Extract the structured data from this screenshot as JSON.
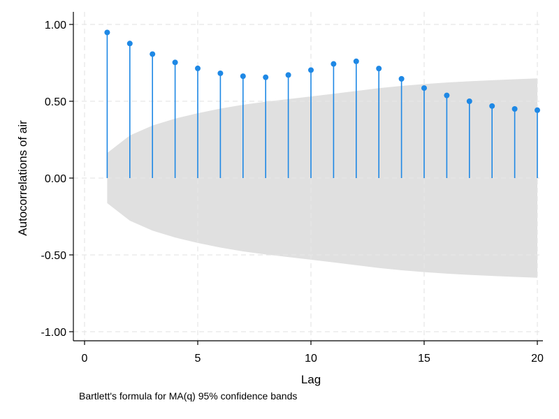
{
  "chart_data": {
    "type": "line",
    "subtype": "autocorrelogram",
    "title": "",
    "xlabel": "Lag",
    "ylabel": "Autocorrelations of air",
    "note": "Bartlett's formula for MA(q) 95% confidence bands",
    "xlim": [
      0,
      20
    ],
    "ylim": [
      -1,
      1
    ],
    "x_ticks": [
      0,
      5,
      10,
      15,
      20
    ],
    "x_tick_labels": [
      "0",
      "5",
      "10",
      "15",
      "20"
    ],
    "y_ticks": [
      1,
      0.5,
      0,
      -0.5,
      -1
    ],
    "y_tick_labels": [
      "1.00",
      "0.50",
      "0.00",
      "-0.50",
      "-1.00"
    ],
    "grid": true,
    "lags": [
      1,
      2,
      3,
      4,
      5,
      6,
      7,
      8,
      9,
      10,
      11,
      12,
      13,
      14,
      15,
      16,
      17,
      18,
      19,
      20
    ],
    "series": [
      {
        "values": [
          0.948,
          0.876,
          0.807,
          0.753,
          0.714,
          0.682,
          0.663,
          0.656,
          0.671,
          0.703,
          0.743,
          0.76,
          0.713,
          0.646,
          0.586,
          0.538,
          0.5,
          0.469,
          0.45,
          0.442
        ]
      }
    ],
    "confidence_band": {
      "level": "95%",
      "upper": [
        0.163,
        0.277,
        0.342,
        0.387,
        0.422,
        0.452,
        0.477,
        0.497,
        0.514,
        0.531,
        0.549,
        0.567,
        0.585,
        0.6,
        0.612,
        0.622,
        0.63,
        0.637,
        0.643,
        0.649
      ]
    },
    "colors": {
      "spike": "#1e88e5",
      "band": "#e0e0e0",
      "grid": "#e6e6e6",
      "axis": "#000000"
    }
  }
}
